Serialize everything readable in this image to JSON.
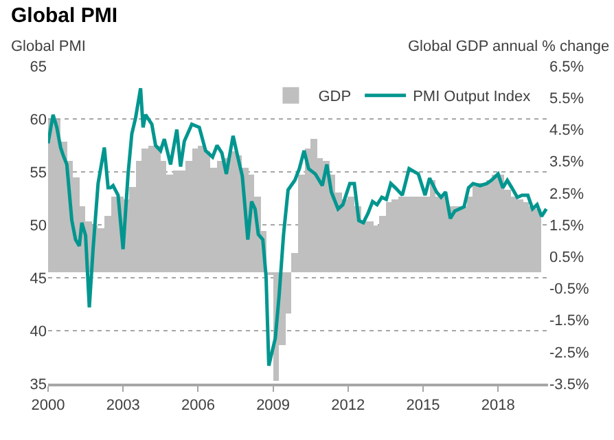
{
  "chart_data": {
    "type": "line",
    "title": "Global PMI",
    "ylabel": "Global PMI",
    "y2label": "Global GDP annual % change",
    "xlim": [
      2000,
      2020
    ],
    "xticks": [
      2000,
      2003,
      2006,
      2009,
      2012,
      2015,
      2018
    ],
    "ylim": [
      35,
      65
    ],
    "yticks": [
      35,
      40,
      45,
      50,
      55,
      60,
      65
    ],
    "y2lim": [
      -3.5,
      6.5
    ],
    "y2ticks": [
      {
        "value": -3.5,
        "label": "-3.5%"
      },
      {
        "value": -2.5,
        "label": "-2.5%"
      },
      {
        "value": -1.5,
        "label": "-1.5%"
      },
      {
        "value": -0.5,
        "label": "-0.5%"
      },
      {
        "value": 0.5,
        "label": "0.5%"
      },
      {
        "value": 1.5,
        "label": "1.5%"
      },
      {
        "value": 2.5,
        "label": "2.5%"
      },
      {
        "value": 3.5,
        "label": "3.5%"
      },
      {
        "value": 4.5,
        "label": "4.5%"
      },
      {
        "value": 5.5,
        "label": "5.5%"
      },
      {
        "value": 6.5,
        "label": "6.5%"
      }
    ],
    "grid": "y",
    "legend": "top right",
    "marker": "none",
    "line_style": "solid",
    "series": [
      {
        "name": "GDP",
        "type": "bar",
        "axis": "y2",
        "color": "#bfbfbf",
        "x": [
          2000.125,
          2000.375,
          2000.625,
          2000.875,
          2001.125,
          2001.375,
          2001.625,
          2001.875,
          2002.125,
          2002.375,
          2002.625,
          2002.875,
          2003.125,
          2003.375,
          2003.625,
          2003.875,
          2004.125,
          2004.375,
          2004.625,
          2004.875,
          2005.125,
          2005.375,
          2005.625,
          2005.875,
          2006.125,
          2006.375,
          2006.625,
          2006.875,
          2007.125,
          2007.375,
          2007.625,
          2007.875,
          2008.125,
          2008.375,
          2008.625,
          2008.875,
          2009.125,
          2009.375,
          2009.625,
          2009.875,
          2010.125,
          2010.375,
          2010.625,
          2010.875,
          2011.125,
          2011.375,
          2011.625,
          2011.875,
          2012.125,
          2012.375,
          2012.625,
          2012.875,
          2013.125,
          2013.375,
          2013.625,
          2013.875,
          2014.125,
          2014.375,
          2014.625,
          2014.875,
          2015.125,
          2015.375,
          2015.625,
          2015.875,
          2016.125,
          2016.375,
          2016.625,
          2016.875,
          2017.125,
          2017.375,
          2017.625,
          2017.875,
          2018.125,
          2018.375,
          2018.625,
          2018.875,
          2019.125,
          2019.375,
          2019.625
        ],
        "values": [
          4.8,
          4.8,
          4.1,
          3.5,
          3.0,
          2.1,
          1.6,
          1.5,
          1.4,
          1.8,
          2.4,
          2.4,
          2.3,
          2.7,
          3.5,
          3.9,
          4.0,
          4.0,
          3.5,
          3.1,
          3.2,
          3.2,
          3.5,
          3.9,
          4.0,
          3.8,
          3.3,
          3.5,
          3.6,
          3.8,
          3.7,
          3.3,
          3.1,
          2.4,
          1.3,
          -0.1,
          -3.4,
          -2.3,
          -1.3,
          0.6,
          3.1,
          3.9,
          4.2,
          3.6,
          3.5,
          3.1,
          2.5,
          2.3,
          2.4,
          2.1,
          1.6,
          1.6,
          1.5,
          1.8,
          2.2,
          2.3,
          2.4,
          2.4,
          2.4,
          2.4,
          2.4,
          2.9,
          2.4,
          2.4,
          2.1,
          2.1,
          2.1,
          2.4,
          2.8,
          2.8,
          2.9,
          3.1,
          3.1,
          2.6,
          2.4,
          2.3,
          2.2,
          2.1,
          2.0
        ]
      },
      {
        "name": "PMI Output Index",
        "color": "#00968f",
        "x": [
          2000.0,
          2000.2,
          2000.35,
          2000.5,
          2000.6,
          2000.75,
          2000.95,
          2001.1,
          2001.25,
          2001.35,
          2001.5,
          2001.65,
          2001.8,
          2002.0,
          2002.25,
          2002.4,
          2002.5,
          2002.6,
          2002.8,
          2003.0,
          2003.2,
          2003.35,
          2003.5,
          2003.7,
          2003.8,
          2003.9,
          2004.15,
          2004.3,
          2004.5,
          2004.65,
          2004.9,
          2005.15,
          2005.3,
          2005.45,
          2005.75,
          2006.05,
          2006.3,
          2006.58,
          2006.76,
          2006.95,
          2007.13,
          2007.4,
          2007.59,
          2007.77,
          2007.99,
          2008.14,
          2008.28,
          2008.41,
          2008.59,
          2008.72,
          2008.83,
          2008.96,
          2009.09,
          2009.24,
          2009.42,
          2009.6,
          2009.87,
          2010.05,
          2010.24,
          2010.42,
          2010.69,
          2010.97,
          2011.15,
          2011.33,
          2011.6,
          2011.79,
          2012.07,
          2012.25,
          2012.43,
          2012.61,
          2012.8,
          2012.98,
          2013.16,
          2013.35,
          2013.53,
          2013.71,
          2013.89,
          2014.17,
          2014.44,
          2014.81,
          2015.08,
          2015.26,
          2015.54,
          2015.72,
          2015.9,
          2016.09,
          2016.27,
          2016.45,
          2016.64,
          2016.82,
          2017.0,
          2017.28,
          2017.55,
          2017.73,
          2018.0,
          2018.19,
          2018.37,
          2018.55,
          2018.77,
          2018.96,
          2019.19,
          2019.38,
          2019.56,
          2019.74,
          2019.93
        ],
        "values": [
          57.7,
          60.4,
          59.2,
          57.3,
          56.6,
          55.7,
          50.4,
          48.6,
          48.0,
          50.2,
          49.0,
          42.2,
          47.7,
          53.9,
          57.3,
          53.5,
          53.5,
          53.7,
          52.8,
          47.7,
          54.8,
          58.6,
          60.1,
          62.9,
          59.2,
          60.4,
          59.5,
          57.5,
          57.0,
          58.1,
          55.7,
          59.0,
          55.5,
          57.9,
          59.5,
          59.2,
          57.0,
          56.4,
          57.5,
          56.8,
          54.8,
          58.4,
          56.4,
          54.6,
          48.6,
          52.2,
          51.5,
          49.1,
          48.6,
          45.1,
          36.7,
          38.0,
          39.3,
          43.3,
          49.1,
          53.3,
          54.2,
          55.3,
          57.0,
          55.3,
          54.8,
          53.7,
          55.7,
          53.1,
          51.5,
          51.9,
          53.9,
          53.9,
          50.4,
          50.2,
          51.1,
          52.2,
          51.9,
          52.6,
          52.4,
          53.9,
          53.5,
          52.8,
          55.3,
          54.8,
          52.8,
          54.4,
          53.1,
          52.6,
          53.1,
          50.6,
          51.3,
          51.5,
          51.7,
          53.5,
          53.9,
          53.7,
          53.9,
          54.2,
          54.8,
          53.5,
          54.2,
          53.5,
          52.6,
          52.8,
          52.8,
          51.5,
          51.9,
          50.8,
          51.5
        ]
      }
    ]
  }
}
